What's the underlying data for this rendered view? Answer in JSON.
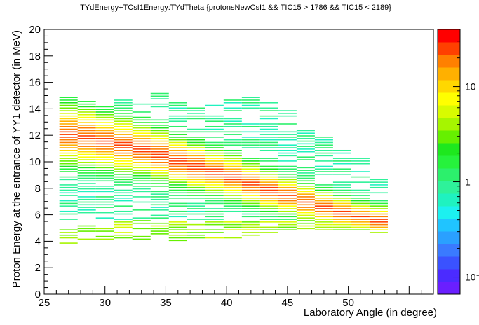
{
  "chart_data": {
    "type": "heatmap",
    "title": "TYdEnergy+TCsI1Energy:TYdTheta {protonsNewCsI1 &&  TIC15 > 1786 && TIC15 < 2189}",
    "xlabel": "Laboratory Angle (in degree)",
    "ylabel": "Proton Energy at the entrance of YY1 detector (in MeV)",
    "xlim": [
      25,
      57
    ],
    "ylim": [
      0,
      20
    ],
    "x_ticks": [
      "25",
      "30",
      "35",
      "40",
      "45",
      "50"
    ],
    "y_ticks": [
      "0",
      "2",
      "4",
      "6",
      "8",
      "10",
      "12",
      "14",
      "16",
      "18",
      "20"
    ],
    "z_scale": "log",
    "z_ticks": [
      "10",
      "1",
      "10⁻¹"
    ],
    "palette": [
      "#6a1fff",
      "#4b2bff",
      "#3a52ff",
      "#3a7aff",
      "#2aa0ff",
      "#20c4ff",
      "#1cf0f0",
      "#1ff2c0",
      "#2ef29a",
      "#2cf06c",
      "#26f23c",
      "#1ee81e",
      "#66f000",
      "#a6f500",
      "#d8fb00",
      "#ffff00",
      "#ffd800",
      "#ffb000",
      "#ff8000",
      "#ff4000",
      "#ff0000"
    ],
    "columns": [
      {
        "x": 27.0,
        "ymin": 3.8,
        "ymax": 14.8,
        "peak": 12.0,
        "width": 1.6
      },
      {
        "x": 28.5,
        "ymin": 3.7,
        "ymax": 14.5,
        "peak": 11.8,
        "width": 1.6
      },
      {
        "x": 30.0,
        "ymin": 3.9,
        "ymax": 14.4,
        "peak": 11.5,
        "width": 1.5
      },
      {
        "x": 31.5,
        "ymin": 4.0,
        "ymax": 14.6,
        "peak": 11.2,
        "width": 1.5
      },
      {
        "x": 33.0,
        "ymin": 4.1,
        "ymax": 14.6,
        "peak": 10.9,
        "width": 1.4
      },
      {
        "x": 34.5,
        "ymin": 4.1,
        "ymax": 15.1,
        "peak": 10.5,
        "width": 1.4
      },
      {
        "x": 36.0,
        "ymin": 4.0,
        "ymax": 14.4,
        "peak": 10.0,
        "width": 1.3
      },
      {
        "x": 37.5,
        "ymin": 4.0,
        "ymax": 14.1,
        "peak": 9.6,
        "width": 1.3
      },
      {
        "x": 39.0,
        "ymin": 4.2,
        "ymax": 14.3,
        "peak": 9.2,
        "width": 1.2
      },
      {
        "x": 40.5,
        "ymin": 4.2,
        "ymax": 14.6,
        "peak": 8.8,
        "width": 1.2
      },
      {
        "x": 42.0,
        "ymin": 4.4,
        "ymax": 14.9,
        "peak": 8.3,
        "width": 1.1
      },
      {
        "x": 43.5,
        "ymin": 4.6,
        "ymax": 14.5,
        "peak": 7.8,
        "width": 1.1
      },
      {
        "x": 45.0,
        "ymin": 4.6,
        "ymax": 14.1,
        "peak": 7.4,
        "width": 1.0
      },
      {
        "x": 46.5,
        "ymin": 4.7,
        "ymax": 12.3,
        "peak": 6.9,
        "width": 1.0
      },
      {
        "x": 48.0,
        "ymin": 4.8,
        "ymax": 11.8,
        "peak": 6.5,
        "width": 0.9
      },
      {
        "x": 49.5,
        "ymin": 4.8,
        "ymax": 11.3,
        "peak": 6.1,
        "width": 0.9
      },
      {
        "x": 51.0,
        "ymin": 4.8,
        "ymax": 10.5,
        "peak": 5.8,
        "width": 0.8
      },
      {
        "x": 52.5,
        "ymin": 4.6,
        "ymax": 8.6,
        "peak": 5.5,
        "width": 0.8
      }
    ]
  }
}
